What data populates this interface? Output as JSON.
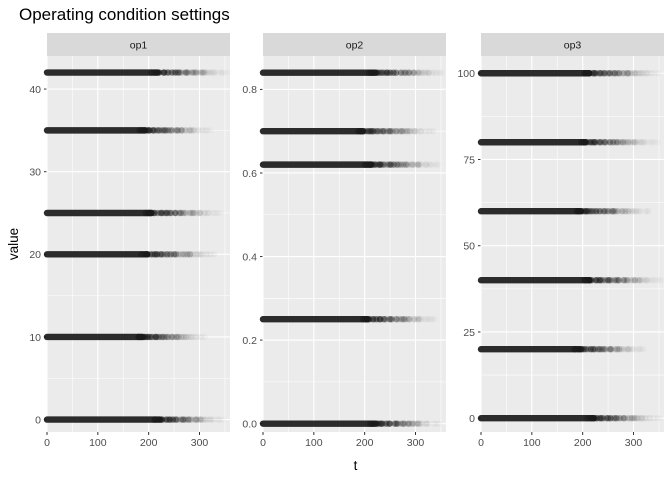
{
  "chart_data": {
    "type": "scatter",
    "title": "Operating condition settings",
    "xlabel": "t",
    "ylabel": "value",
    "x_range": [
      0,
      360
    ],
    "x_ticks": [
      0,
      100,
      200,
      300
    ],
    "grid": true,
    "legend": "none",
    "colors": {
      "panel_bg": "#ebebeb",
      "strip_bg": "#d9d9d9",
      "grid": "#ffffff",
      "points": "#1a1a1a"
    },
    "panels": [
      {
        "label": "op1",
        "ylim": [
          -1.5,
          44
        ],
        "y_ticks": [
          0,
          10,
          20,
          30,
          40
        ],
        "levels": [
          {
            "value": 0,
            "dense_to": 270,
            "fade_to": 345
          },
          {
            "value": 10,
            "dense_to": 230,
            "fade_to": 310
          },
          {
            "value": 20,
            "dense_to": 240,
            "fade_to": 330
          },
          {
            "value": 25,
            "dense_to": 250,
            "fade_to": 340
          },
          {
            "value": 35,
            "dense_to": 235,
            "fade_to": 320
          },
          {
            "value": 42,
            "dense_to": 265,
            "fade_to": 355
          }
        ]
      },
      {
        "label": "op2",
        "ylim": [
          -0.02,
          0.88
        ],
        "y_ticks": [
          0.0,
          0.2,
          0.4,
          0.6,
          0.8
        ],
        "levels": [
          {
            "value": 0.0,
            "dense_to": 270,
            "fade_to": 345
          },
          {
            "value": 0.25,
            "dense_to": 250,
            "fade_to": 340
          },
          {
            "value": 0.62,
            "dense_to": 260,
            "fade_to": 345
          },
          {
            "value": 0.7,
            "dense_to": 240,
            "fade_to": 335
          },
          {
            "value": 0.84,
            "dense_to": 270,
            "fade_to": 355
          }
        ]
      },
      {
        "label": "op3",
        "ylim": [
          -4,
          105
        ],
        "y_ticks": [
          0,
          25,
          50,
          75,
          100
        ],
        "levels": [
          {
            "value": 0,
            "dense_to": 270,
            "fade_to": 350
          },
          {
            "value": 20,
            "dense_to": 235,
            "fade_to": 320
          },
          {
            "value": 40,
            "dense_to": 260,
            "fade_to": 355
          },
          {
            "value": 60,
            "dense_to": 240,
            "fade_to": 330
          },
          {
            "value": 80,
            "dense_to": 250,
            "fade_to": 345
          },
          {
            "value": 100,
            "dense_to": 260,
            "fade_to": 350
          }
        ]
      }
    ]
  }
}
